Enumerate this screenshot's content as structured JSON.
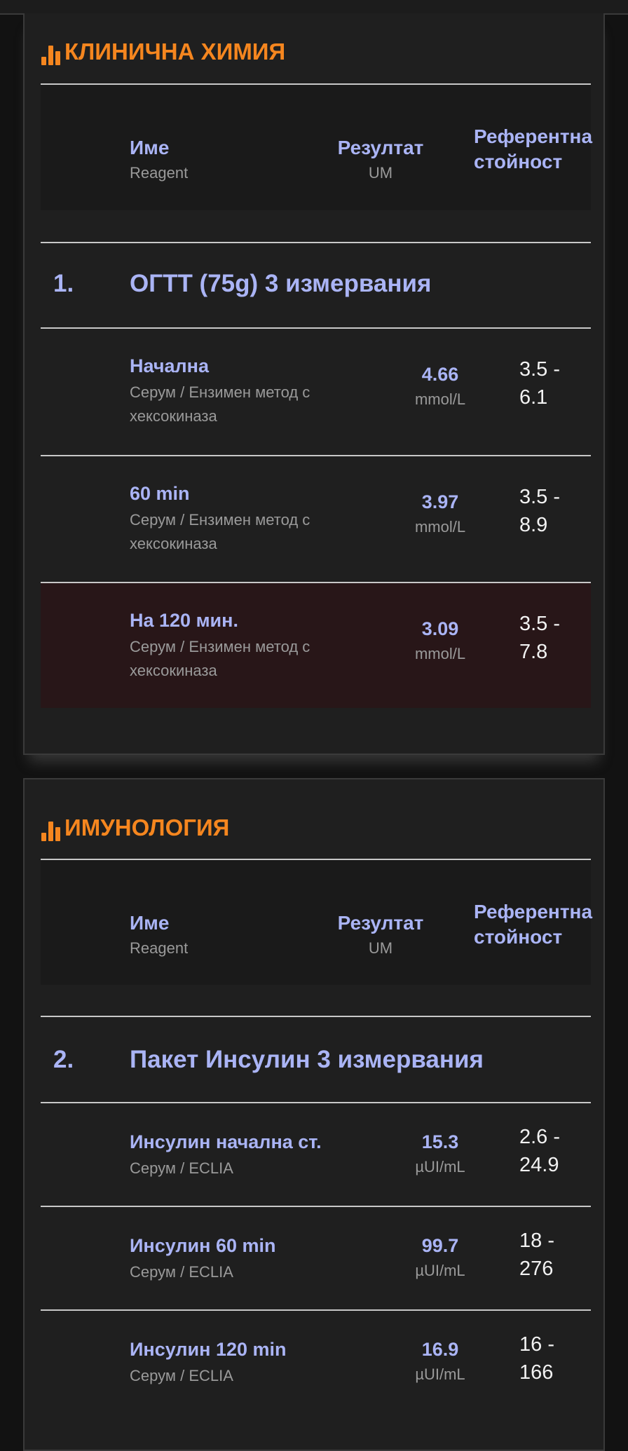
{
  "colors": {
    "accent": "#f5861f",
    "label": "#aab4f5",
    "highlight_row": "#281618"
  },
  "sections": [
    {
      "icon": "bar-chart-icon",
      "title": "КЛИНИЧНА ХИМИЯ",
      "header": {
        "name": "Име",
        "name_sub": "Reagent",
        "result": "Резултат",
        "result_sub": "UM",
        "reference": "Референтна стойност"
      },
      "group": {
        "number": "1.",
        "title": "ОГТТ (75g) 3 измервания"
      },
      "rows": [
        {
          "name": "Начална",
          "sub": "Серум / Ензимен метод с хексокиназа",
          "value": "4.66",
          "unit": "mmol/L",
          "ref": "3.5 - 6.1",
          "flagged": false
        },
        {
          "name": "60 min",
          "sub": "Серум / Ензимен метод с хексокиназа",
          "value": "3.97",
          "unit": "mmol/L",
          "ref": "3.5 - 8.9",
          "flagged": false
        },
        {
          "name": "На 120 мин.",
          "sub": "Серум / Ензимен метод с хексокиназа",
          "value": "3.09",
          "unit": "mmol/L",
          "ref": "3.5 - 7.8",
          "flagged": true
        }
      ]
    },
    {
      "icon": "bar-chart-icon",
      "title": "ИМУНОЛОГИЯ",
      "header": {
        "name": "Име",
        "name_sub": "Reagent",
        "result": "Резултат",
        "result_sub": "UM",
        "reference": "Референтна стойност"
      },
      "group": {
        "number": "2.",
        "title": "Пакет Инсулин 3 измервания"
      },
      "rows": [
        {
          "name": "Инсулин начална ст.",
          "sub": "Серум / ECLIA",
          "value": "15.3",
          "unit": "µUI/mL",
          "ref": "2.6 - 24.9",
          "flagged": false
        },
        {
          "name": "Инсулин 60 min",
          "sub": "Серум / ECLIA",
          "value": "99.7",
          "unit": "µUI/mL",
          "ref": "18 - 276",
          "flagged": false
        },
        {
          "name": "Инсулин 120 min",
          "sub": "Серум / ECLIA",
          "value": "16.9",
          "unit": "µUI/mL",
          "ref": "16 - 166",
          "flagged": false
        }
      ]
    }
  ]
}
